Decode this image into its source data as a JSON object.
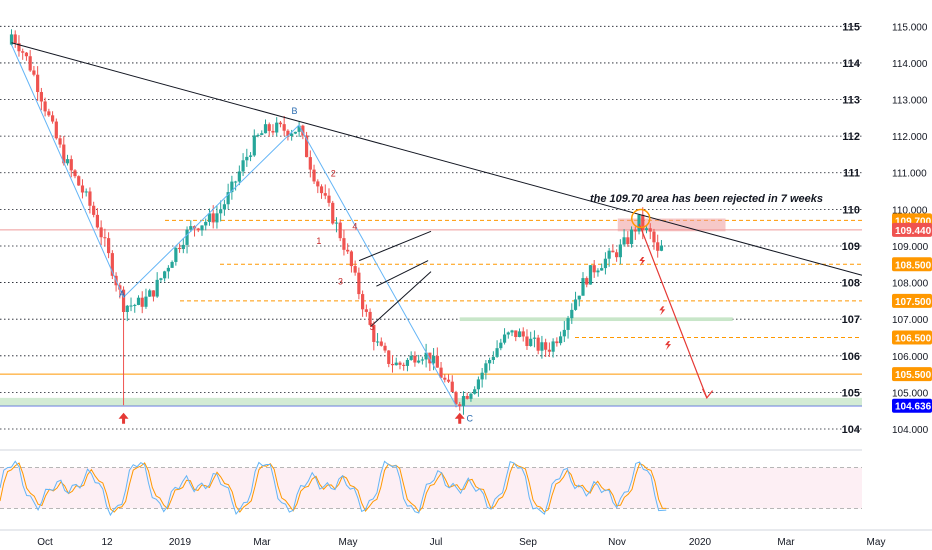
{
  "chart_data": {
    "type": "candlestick",
    "instrument_scale": "price",
    "price_axis": {
      "range": [
        103.7,
        115.5
      ],
      "ticks": [
        "115.000",
        "114.000",
        "113.000",
        "112.000",
        "111.000",
        "110.000",
        "109.000",
        "108.000",
        "107.000",
        "106.000",
        "105.000",
        "104.000"
      ]
    },
    "time_axis": {
      "labels": [
        "Oct",
        "12",
        "2019",
        "Mar",
        "May",
        "Jul",
        "Sep",
        "Nov",
        "2020",
        "Mar",
        "May"
      ],
      "range_days": [
        0,
        600
      ]
    },
    "dotted_levels": [
      "115",
      "114",
      "113",
      "112",
      "111",
      "110",
      "109",
      "108",
      "107",
      "106",
      "105",
      "104"
    ],
    "price_tags": [
      {
        "label": "109.700",
        "price": 109.7,
        "color": "#ff9800"
      },
      {
        "label": "109.440",
        "price": 109.44,
        "color": "#ef5350"
      },
      {
        "label": "108.500",
        "price": 108.5,
        "color": "#ff9800"
      },
      {
        "label": "107.500",
        "price": 107.5,
        "color": "#ff9800"
      },
      {
        "label": "106.500",
        "price": 106.5,
        "color": "#ff9800"
      },
      {
        "label": "105.500",
        "price": 105.5,
        "color": "#ff9800"
      },
      {
        "label": "104.636",
        "price": 104.636,
        "color": "#0000ff"
      }
    ],
    "wave_labels": [
      {
        "text": "A",
        "day": 85,
        "price": 107.6,
        "color": "#2b6cb0"
      },
      {
        "text": "B",
        "day": 205,
        "price": 112.6,
        "color": "#2b6cb0"
      },
      {
        "text": "C",
        "day": 327,
        "price": 104.2,
        "color": "#2b6cb0"
      },
      {
        "text": "1",
        "day": 222,
        "price": 109.05,
        "color": "#c62828"
      },
      {
        "text": "2",
        "day": 232,
        "price": 110.9,
        "color": "#c62828"
      },
      {
        "text": "3",
        "day": 237,
        "price": 107.95,
        "color": "#c62828"
      },
      {
        "text": "4",
        "day": 247,
        "price": 109.45,
        "color": "#c62828"
      },
      {
        "text": "5",
        "day": 259,
        "price": 106.7,
        "color": "#c62828"
      }
    ],
    "annotation": "the 109.70 area  has been rejected in 7 weeks",
    "key_points": [
      {
        "day": 8,
        "price": 114.5
      },
      {
        "day": 86,
        "price": 107.6
      },
      {
        "day": 208,
        "price": 112.3
      },
      {
        "day": 262,
        "price": 106.8
      },
      {
        "day": 318,
        "price": 104.6
      },
      {
        "day": 445,
        "price": 109.7
      },
      {
        "day": 460,
        "price": 108.0
      }
    ],
    "oscillator": {
      "ticks": [
        "80.00",
        "40.00",
        "0.00"
      ],
      "range": [
        0,
        100
      ],
      "upper": 80,
      "lower": 20
    }
  }
}
